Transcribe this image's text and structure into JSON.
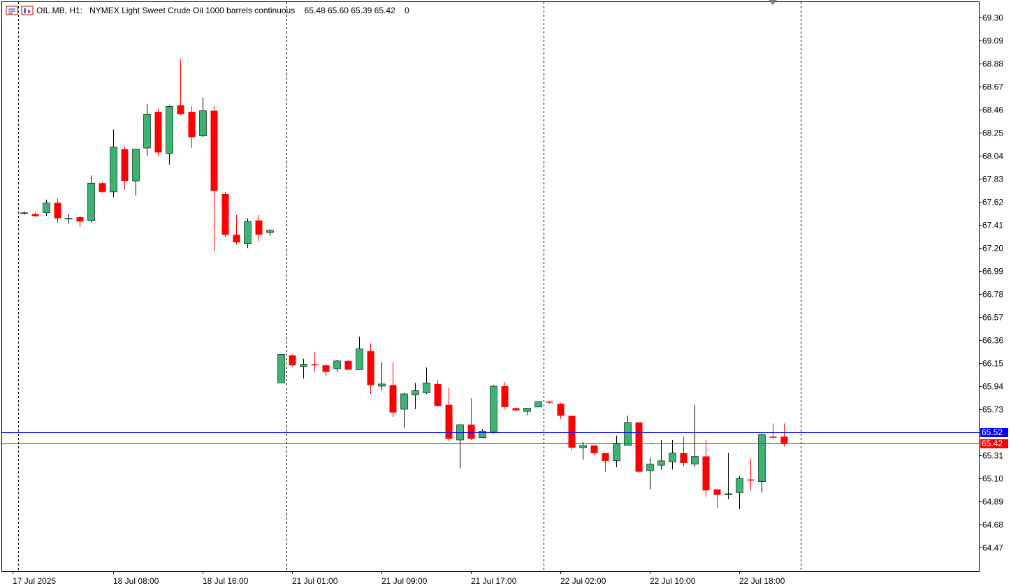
{
  "header": {
    "symbol": "OIL.MB, H1:",
    "description": "NYMEX Light Sweet Crude Oil 1000 barrels continuous",
    "ohlc": "65.48 65.60 65.39 65.42",
    "volume": "0"
  },
  "colors": {
    "bull": "#3cb371",
    "bear": "#ff0000",
    "bid_line": "#0000ff",
    "ask_line": "#ff0000",
    "bid_label_bg": "#0000ff",
    "ask_label_bg": "#ff0000",
    "grid_separator": "#000000"
  },
  "price_labels": {
    "bid": "65.52",
    "ask": "65.42"
  },
  "chart_data": {
    "type": "candlestick",
    "timeframe": "H1",
    "ylim": [
      64.36,
      69.38
    ],
    "y_ticks": [
      "69.30",
      "69.09",
      "68.88",
      "68.67",
      "68.46",
      "68.25",
      "68.04",
      "67.83",
      "67.62",
      "67.41",
      "67.20",
      "66.99",
      "66.78",
      "66.57",
      "66.36",
      "66.15",
      "65.94",
      "65.73",
      "65.52",
      "65.31",
      "65.10",
      "64.89",
      "64.68",
      "64.47"
    ],
    "x_labels": [
      "17 Jul 2025",
      "18 Jul 08:00",
      "18 Jul 16:00",
      "21 Jul 01:00",
      "21 Jul 09:00",
      "21 Jul 17:00",
      "22 Jul 02:00",
      "22 Jul 10:00",
      "22 Jul 18:00"
    ],
    "x_label_index": [
      -1,
      8,
      16,
      24,
      32,
      40,
      48,
      56,
      64
    ],
    "day_separators_at_index": [
      -0.5,
      23.5,
      46.5,
      69.5
    ],
    "bid": 65.52,
    "ask": 65.42,
    "candles": [
      {
        "o": 67.52,
        "h": 67.53,
        "l": 67.5,
        "c": 67.52
      },
      {
        "o": 67.51,
        "h": 67.53,
        "l": 67.48,
        "c": 67.49
      },
      {
        "o": 67.52,
        "h": 67.64,
        "l": 67.49,
        "c": 67.61
      },
      {
        "o": 67.61,
        "h": 67.65,
        "l": 67.43,
        "c": 67.47
      },
      {
        "o": 67.47,
        "h": 67.51,
        "l": 67.42,
        "c": 67.47
      },
      {
        "o": 67.48,
        "h": 67.49,
        "l": 67.39,
        "c": 67.44
      },
      {
        "o": 67.45,
        "h": 67.86,
        "l": 67.43,
        "c": 67.79
      },
      {
        "o": 67.79,
        "h": 67.8,
        "l": 67.7,
        "c": 67.71
      },
      {
        "o": 67.71,
        "h": 68.28,
        "l": 67.66,
        "c": 68.12
      },
      {
        "o": 68.1,
        "h": 68.12,
        "l": 67.73,
        "c": 67.81
      },
      {
        "o": 67.81,
        "h": 68.1,
        "l": 67.68,
        "c": 68.1
      },
      {
        "o": 68.11,
        "h": 68.51,
        "l": 68.04,
        "c": 68.42
      },
      {
        "o": 68.44,
        "h": 68.47,
        "l": 68.04,
        "c": 68.07
      },
      {
        "o": 68.06,
        "h": 68.5,
        "l": 67.96,
        "c": 68.49
      },
      {
        "o": 68.5,
        "h": 68.92,
        "l": 68.41,
        "c": 68.42
      },
      {
        "o": 68.44,
        "h": 68.49,
        "l": 68.11,
        "c": 68.21
      },
      {
        "o": 68.22,
        "h": 68.57,
        "l": 68.21,
        "c": 68.45
      },
      {
        "o": 68.45,
        "h": 68.49,
        "l": 67.17,
        "c": 67.72
      },
      {
        "o": 67.69,
        "h": 67.71,
        "l": 67.3,
        "c": 67.32
      },
      {
        "o": 67.32,
        "h": 67.5,
        "l": 67.23,
        "c": 67.25
      },
      {
        "o": 67.24,
        "h": 67.47,
        "l": 67.2,
        "c": 67.44
      },
      {
        "o": 67.45,
        "h": 67.5,
        "l": 67.26,
        "c": 67.32
      },
      {
        "o": 67.34,
        "h": 67.37,
        "l": 67.31,
        "c": 67.36
      },
      {
        "o": 65.97,
        "h": 66.23,
        "l": 65.97,
        "c": 66.23
      },
      {
        "o": 66.22,
        "h": 66.23,
        "l": 66.12,
        "c": 66.13
      },
      {
        "o": 66.12,
        "h": 66.19,
        "l": 66.01,
        "c": 66.14
      },
      {
        "o": 66.14,
        "h": 66.25,
        "l": 66.07,
        "c": 66.13
      },
      {
        "o": 66.13,
        "h": 66.14,
        "l": 66.03,
        "c": 66.07
      },
      {
        "o": 66.1,
        "h": 66.18,
        "l": 66.07,
        "c": 66.17
      },
      {
        "o": 66.17,
        "h": 66.18,
        "l": 66.09,
        "c": 66.09
      },
      {
        "o": 66.09,
        "h": 66.39,
        "l": 66.09,
        "c": 66.28
      },
      {
        "o": 66.26,
        "h": 66.33,
        "l": 65.87,
        "c": 65.95
      },
      {
        "o": 65.94,
        "h": 66.16,
        "l": 65.9,
        "c": 65.96
      },
      {
        "o": 65.95,
        "h": 66.16,
        "l": 65.66,
        "c": 65.7
      },
      {
        "o": 65.73,
        "h": 65.88,
        "l": 65.56,
        "c": 65.87
      },
      {
        "o": 65.86,
        "h": 65.97,
        "l": 65.73,
        "c": 65.9
      },
      {
        "o": 65.88,
        "h": 66.11,
        "l": 65.87,
        "c": 65.97
      },
      {
        "o": 65.96,
        "h": 66.0,
        "l": 65.75,
        "c": 65.76
      },
      {
        "o": 65.77,
        "h": 65.93,
        "l": 65.44,
        "c": 65.46
      },
      {
        "o": 65.45,
        "h": 65.59,
        "l": 65.19,
        "c": 65.59
      },
      {
        "o": 65.59,
        "h": 65.83,
        "l": 65.45,
        "c": 65.46
      },
      {
        "o": 65.47,
        "h": 65.55,
        "l": 65.47,
        "c": 65.53
      },
      {
        "o": 65.52,
        "h": 65.95,
        "l": 65.51,
        "c": 65.94
      },
      {
        "o": 65.94,
        "h": 65.98,
        "l": 65.73,
        "c": 65.75
      },
      {
        "o": 65.74,
        "h": 65.75,
        "l": 65.71,
        "c": 65.72
      },
      {
        "o": 65.71,
        "h": 65.74,
        "l": 65.68,
        "c": 65.74
      },
      {
        "o": 65.75,
        "h": 65.8,
        "l": 65.75,
        "c": 65.8
      },
      {
        "o": 65.8,
        "h": 65.8,
        "l": 65.78,
        "c": 65.79
      },
      {
        "o": 65.78,
        "h": 65.79,
        "l": 65.64,
        "c": 65.67
      },
      {
        "o": 65.67,
        "h": 65.67,
        "l": 65.35,
        "c": 65.38
      },
      {
        "o": 65.38,
        "h": 65.43,
        "l": 65.27,
        "c": 65.4
      },
      {
        "o": 65.4,
        "h": 65.4,
        "l": 65.31,
        "c": 65.33
      },
      {
        "o": 65.33,
        "h": 65.33,
        "l": 65.16,
        "c": 65.26
      },
      {
        "o": 65.26,
        "h": 65.49,
        "l": 65.2,
        "c": 65.42
      },
      {
        "o": 65.4,
        "h": 65.67,
        "l": 65.4,
        "c": 65.61
      },
      {
        "o": 65.61,
        "h": 65.61,
        "l": 65.15,
        "c": 65.16
      },
      {
        "o": 65.17,
        "h": 65.29,
        "l": 65.0,
        "c": 65.23
      },
      {
        "o": 65.22,
        "h": 65.45,
        "l": 65.18,
        "c": 65.26
      },
      {
        "o": 65.25,
        "h": 65.45,
        "l": 65.18,
        "c": 65.33
      },
      {
        "o": 65.33,
        "h": 65.48,
        "l": 65.21,
        "c": 65.24
      },
      {
        "o": 65.23,
        "h": 65.77,
        "l": 65.2,
        "c": 65.3
      },
      {
        "o": 65.3,
        "h": 65.45,
        "l": 64.93,
        "c": 64.99
      },
      {
        "o": 65.0,
        "h": 65.0,
        "l": 64.83,
        "c": 64.95
      },
      {
        "o": 64.95,
        "h": 65.33,
        "l": 64.91,
        "c": 64.96
      },
      {
        "o": 64.97,
        "h": 65.12,
        "l": 64.82,
        "c": 65.1
      },
      {
        "o": 65.09,
        "h": 65.28,
        "l": 64.99,
        "c": 65.08
      },
      {
        "o": 65.07,
        "h": 65.51,
        "l": 64.97,
        "c": 65.5
      },
      {
        "o": 65.48,
        "h": 65.6,
        "l": 65.47,
        "c": 65.47
      },
      {
        "o": 65.48,
        "h": 65.6,
        "l": 65.39,
        "c": 65.42
      }
    ]
  }
}
